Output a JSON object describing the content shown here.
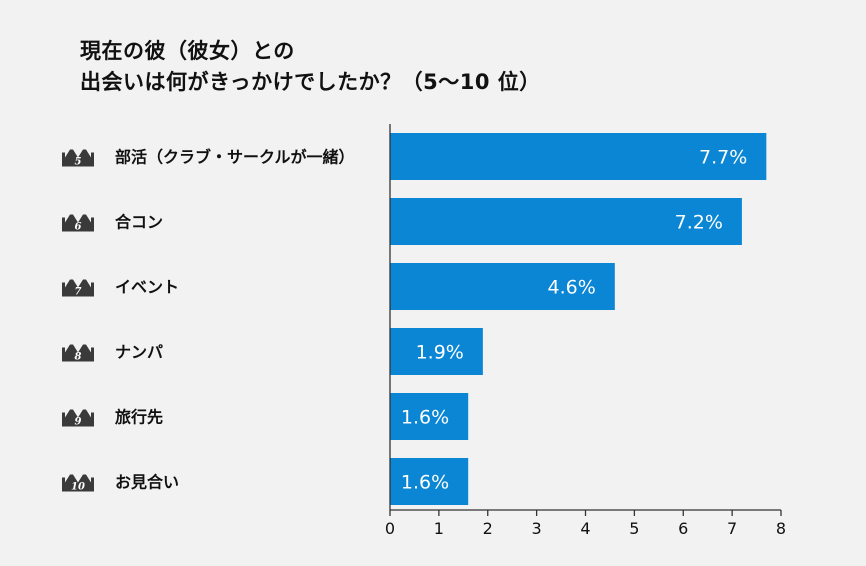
{
  "chart_data": {
    "type": "bar",
    "orientation": "horizontal",
    "title_lines": [
      "現在の彼（彼女）との",
      "出会いは何がきっかけでしたか？（5〜10 位）"
    ],
    "ranks": [
      "5",
      "6",
      "7",
      "8",
      "9",
      "10"
    ],
    "categories": [
      "部活（クラブ・サークルが一緒）",
      "合コン",
      "イベント",
      "ナンパ",
      "旅行先",
      "お見合い"
    ],
    "values": [
      7.7,
      7.2,
      4.6,
      1.9,
      1.6,
      1.6
    ],
    "value_labels": [
      "7.7%",
      "7.2%",
      "4.6%",
      "1.9%",
      "1.6%",
      "1.6%"
    ],
    "xlim": [
      0,
      8
    ],
    "x_ticks": [
      "0",
      "1",
      "2",
      "3",
      "4",
      "5",
      "6",
      "7",
      "8"
    ],
    "xlabel": "",
    "ylabel": "",
    "grid": false,
    "bar_color": "#0a86d4",
    "axis_color": "#333333",
    "crown_color": "#3a3a3a"
  }
}
